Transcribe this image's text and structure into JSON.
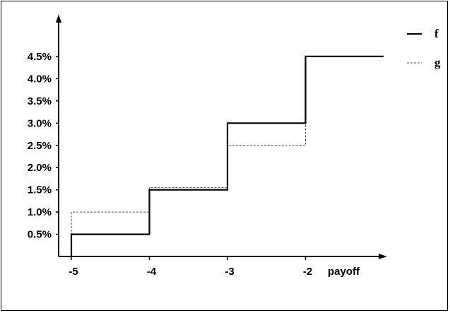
{
  "chart_data": {
    "type": "line",
    "step": true,
    "xlabel": "payoff",
    "ylabel": "",
    "xlim": [
      -5.15,
      -0.85
    ],
    "ylim": [
      0,
      4.9
    ],
    "x_ticks": [
      {
        "value": -5,
        "label": "-5"
      },
      {
        "value": -4,
        "label": "-4"
      },
      {
        "value": -3,
        "label": "-3"
      },
      {
        "value": -2,
        "label": "-2"
      }
    ],
    "y_ticks": [
      {
        "value": 0.5,
        "label": "0.5%"
      },
      {
        "value": 1.0,
        "label": "1.0%"
      },
      {
        "value": 1.5,
        "label": "1.5%"
      },
      {
        "value": 2.0,
        "label": "2.0%"
      },
      {
        "value": 2.5,
        "label": "2.5%"
      },
      {
        "value": 3.0,
        "label": "3.0%"
      },
      {
        "value": 3.5,
        "label": "3.5%"
      },
      {
        "value": 4.0,
        "label": "4.0%"
      },
      {
        "value": 4.5,
        "label": "4.5%"
      }
    ],
    "grid": false,
    "legend_position": "right",
    "series": [
      {
        "name": "f",
        "style": "solid",
        "color": "#000000",
        "points": [
          [
            -5,
            0
          ],
          [
            -5,
            0.5
          ],
          [
            -4,
            0.5
          ],
          [
            -4,
            1.5
          ],
          [
            -3,
            1.5
          ],
          [
            -3,
            3.0
          ],
          [
            -2,
            3.0
          ],
          [
            -2,
            4.5
          ],
          [
            -1,
            4.5
          ]
        ]
      },
      {
        "name": "g",
        "style": "dashed",
        "color": "#555555",
        "points": [
          [
            -5,
            0
          ],
          [
            -5,
            1.0
          ],
          [
            -4,
            1.0
          ],
          [
            -4,
            1.55
          ],
          [
            -3,
            1.55
          ],
          [
            -3,
            2.5
          ],
          [
            -2,
            2.5
          ],
          [
            -2,
            4.5
          ],
          [
            -1,
            4.5
          ]
        ]
      }
    ]
  }
}
